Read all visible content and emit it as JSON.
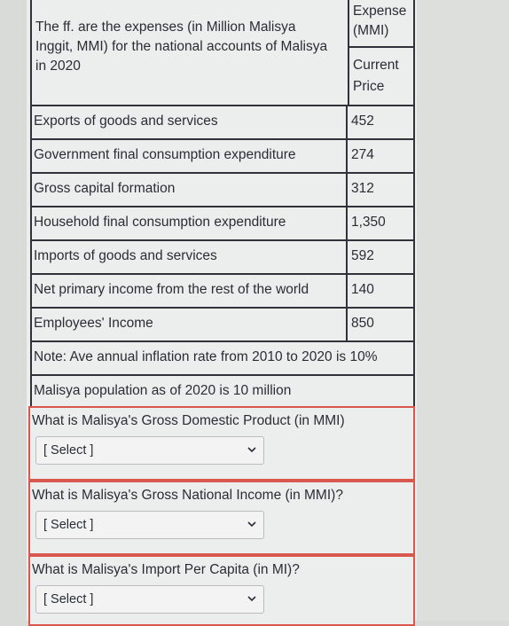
{
  "intro_text": "The ff. are the expenses (in Million Malisya Inggit, MMI) for the national accounts of Malisya in 2020",
  "header": {
    "expense": "Expense (MMI)",
    "current_price": "Current Price"
  },
  "rows": [
    {
      "label": "Exports of goods and services",
      "value": "452"
    },
    {
      "label": "Government final consumption expenditure",
      "value": "274"
    },
    {
      "label": "Gross capital formation",
      "value": "312"
    },
    {
      "label": "Household final consumption expenditure",
      "value": "1,350"
    },
    {
      "label": "Imports of goods and services",
      "value": "592"
    },
    {
      "label": "Net primary income from the rest of the world",
      "value": "140"
    },
    {
      "label": "Employees' Income",
      "value": "850"
    }
  ],
  "notes": [
    "Note: Ave annual inflation rate from 2010 to 2020 is 10%",
    "Malisya population as of 2020 is 10 million"
  ],
  "questions": [
    {
      "text": "What is Malisya's Gross Domestic Product (in MMI)",
      "select": "[ Select ]"
    },
    {
      "text": "What is Malisya's Gross National Income (in MMI)?",
      "select": "[ Select ]"
    },
    {
      "text": "What is Malisya's Import Per Capita (in MI)?",
      "select": "[ Select ]"
    }
  ],
  "icons": {
    "dropdown": "chevron-down-icon"
  }
}
